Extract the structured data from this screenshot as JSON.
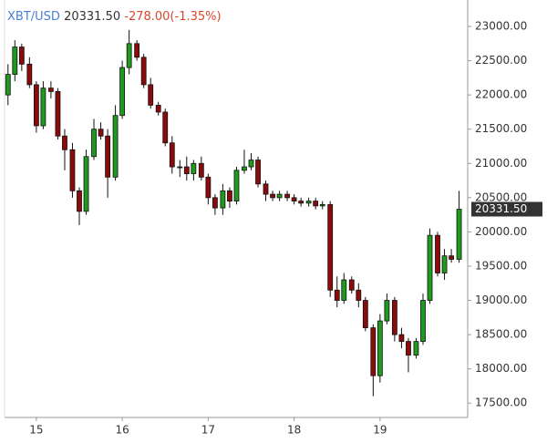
{
  "chart_data": {
    "type": "candlestick",
    "header": {
      "symbol": "XBT/USD",
      "price": "20331.50",
      "change": "-278.00(-1.35%)"
    },
    "last_price_label": "20331.50",
    "x": [
      14.67,
      14.75,
      14.83,
      14.92,
      15,
      15.08,
      15.17,
      15.25,
      15.33,
      15.42,
      15.5,
      15.58,
      15.67,
      15.75,
      15.83,
      15.92,
      16,
      16.08,
      16.17,
      16.25,
      16.33,
      16.42,
      16.5,
      16.58,
      16.67,
      16.75,
      16.83,
      16.92,
      17,
      17.08,
      17.17,
      17.25,
      17.33,
      17.42,
      17.5,
      17.58,
      17.67,
      17.75,
      17.83,
      17.92,
      18,
      18.08,
      18.17,
      18.25,
      18.33,
      18.42,
      18.5,
      18.58,
      18.67,
      18.75,
      18.83,
      18.92,
      19,
      19.08,
      19.17,
      19.25,
      19.33,
      19.42,
      19.5,
      19.58,
      19.67,
      19.75,
      19.83,
      19.92
    ],
    "open": [
      22000,
      22300,
      22700,
      22450,
      22150,
      21550,
      22100,
      22050,
      21400,
      21200,
      20600,
      20300,
      21100,
      21500,
      21400,
      20800,
      21700,
      22400,
      22750,
      22550,
      22150,
      21850,
      21750,
      21300,
      20950,
      20950,
      20850,
      21000,
      20800,
      20500,
      20350,
      20600,
      20450,
      20900,
      20950,
      21050,
      20700,
      20550,
      20500,
      20550,
      20500,
      20450,
      20420,
      20450,
      20380,
      20400,
      19150,
      19000,
      19300,
      19150,
      19000,
      18600,
      17900,
      18700,
      19000,
      18500,
      18400,
      18200,
      18400,
      19000,
      19950,
      19400,
      19650,
      19600
    ],
    "high": [
      22450,
      22800,
      22750,
      22550,
      22200,
      22200,
      22200,
      22100,
      21500,
      21300,
      20650,
      21200,
      21650,
      21600,
      21500,
      21850,
      22500,
      22950,
      22800,
      22600,
      22250,
      21900,
      21800,
      21400,
      21050,
      21100,
      21050,
      21100,
      20850,
      20550,
      20700,
      20650,
      20950,
      21200,
      21150,
      21100,
      20750,
      20600,
      20600,
      20600,
      20550,
      20500,
      20500,
      20500,
      20450,
      20450,
      19350,
      19400,
      19350,
      19250,
      19050,
      18650,
      18800,
      19100,
      19050,
      18600,
      18450,
      18450,
      19100,
      20050,
      20000,
      19750,
      19750,
      20600
    ],
    "low": [
      21850,
      22200,
      22350,
      22100,
      21450,
      21500,
      21950,
      21350,
      20900,
      20500,
      20100,
      20250,
      21050,
      21350,
      20500,
      20750,
      21650,
      22300,
      22500,
      22100,
      21800,
      21700,
      21250,
      20850,
      20800,
      20750,
      20750,
      20750,
      20400,
      20250,
      20250,
      20350,
      20400,
      20850,
      20900,
      20650,
      20450,
      20450,
      20450,
      20450,
      20400,
      20370,
      20370,
      20330,
      20330,
      19050,
      18900,
      18950,
      19100,
      18900,
      18550,
      17600,
      17800,
      18650,
      18400,
      18300,
      17950,
      18150,
      18350,
      18950,
      19350,
      19300,
      19550,
      19550
    ],
    "close": [
      22300,
      22700,
      22450,
      22150,
      21550,
      22100,
      22050,
      21400,
      21200,
      20600,
      20300,
      21100,
      21500,
      21400,
      20800,
      21700,
      22400,
      22750,
      22550,
      22150,
      21850,
      21750,
      21300,
      20950,
      20950,
      20850,
      21000,
      20800,
      20500,
      20350,
      20600,
      20450,
      20900,
      20950,
      21050,
      20700,
      20550,
      20500,
      20550,
      20500,
      20450,
      20420,
      20450,
      20380,
      20400,
      19150,
      19000,
      19300,
      19150,
      19000,
      18600,
      17900,
      18700,
      19000,
      18500,
      18400,
      18200,
      18400,
      19000,
      19950,
      19400,
      19650,
      19600,
      20331.5
    ],
    "up_color": "#1f9a1f",
    "down_color": "#8b0a0a",
    "xlim": [
      14.63,
      20.02
    ],
    "xticks": [
      15,
      16,
      17,
      18,
      19
    ],
    "ylim": [
      17290,
      23320
    ],
    "yticks": [
      {
        "value": 17500,
        "label": "17500.00"
      },
      {
        "value": 18000,
        "label": "18000.00"
      },
      {
        "value": 18500,
        "label": "18500.00"
      },
      {
        "value": 19000,
        "label": "19000.00"
      },
      {
        "value": 19500,
        "label": "19500.00"
      },
      {
        "value": 20000,
        "label": "20000.00"
      },
      {
        "value": 20500,
        "label": "20500.00"
      },
      {
        "value": 21000,
        "label": "21000.00"
      },
      {
        "value": 21500,
        "label": "21500.00"
      },
      {
        "value": 22000,
        "label": "22000.00"
      },
      {
        "value": 22500,
        "label": "22500.00"
      },
      {
        "value": 23000,
        "label": "23000.00"
      }
    ]
  }
}
